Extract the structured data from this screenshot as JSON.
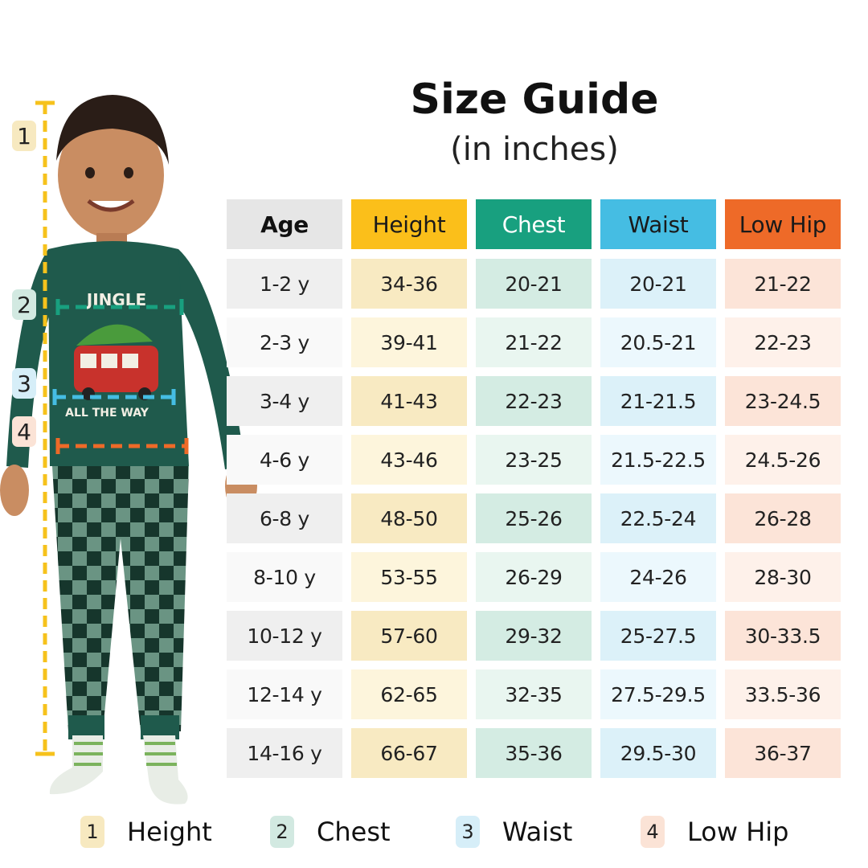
{
  "title": "Size Guide",
  "subtitle": "(in inches)",
  "columns": [
    {
      "key": "age",
      "label": "Age",
      "header_bg": "#e6e6e6",
      "header_fg": "#111111",
      "bold": true,
      "row_bg": [
        "#efefef",
        "#f9f9f9"
      ]
    },
    {
      "key": "height",
      "label": "Height",
      "header_bg": "#fbbf1a",
      "header_fg": "#1a1a1a",
      "bold": false,
      "row_bg": [
        "#f8eac2",
        "#fdf5dc"
      ]
    },
    {
      "key": "chest",
      "label": "Chest",
      "header_bg": "#18a07f",
      "header_fg": "#ffffff",
      "bold": false,
      "row_bg": [
        "#d4ece3",
        "#e9f6f0"
      ]
    },
    {
      "key": "waist",
      "label": "Waist",
      "header_bg": "#45bde3",
      "header_fg": "#1a1a1a",
      "bold": false,
      "row_bg": [
        "#dcf1f9",
        "#ecf8fd"
      ]
    },
    {
      "key": "lowhip",
      "label": "Low Hip",
      "header_bg": "#ee6a28",
      "header_fg": "#1a1a1a",
      "bold": false,
      "row_bg": [
        "#fce4d8",
        "#fef1ea"
      ]
    }
  ],
  "rows": [
    {
      "age": "1-2 y",
      "height": "34-36",
      "chest": "20-21",
      "waist": "20-21",
      "lowhip": "21-22"
    },
    {
      "age": "2-3 y",
      "height": "39-41",
      "chest": "21-22",
      "waist": "20.5-21",
      "lowhip": "22-23"
    },
    {
      "age": "3-4 y",
      "height": "41-43",
      "chest": "22-23",
      "waist": "21-21.5",
      "lowhip": "23-24.5"
    },
    {
      "age": "4-6 y",
      "height": "43-46",
      "chest": "23-25",
      "waist": "21.5-22.5",
      "lowhip": "24.5-26"
    },
    {
      "age": "6-8 y",
      "height": "48-50",
      "chest": "25-26",
      "waist": "22.5-24",
      "lowhip": "26-28"
    },
    {
      "age": "8-10 y",
      "height": "53-55",
      "chest": "26-29",
      "waist": "24-26",
      "lowhip": "28-30"
    },
    {
      "age": "10-12 y",
      "height": "57-60",
      "chest": "29-32",
      "waist": "25-27.5",
      "lowhip": "30-33.5"
    },
    {
      "age": "12-14 y",
      "height": "62-65",
      "chest": "32-35",
      "waist": "27.5-29.5",
      "lowhip": "33.5-36"
    },
    {
      "age": "14-16 y",
      "height": "66-67",
      "chest": "35-36",
      "waist": "29.5-30",
      "lowhip": "36-37"
    }
  ],
  "markers": [
    {
      "num": "1",
      "color": "#f7e9c0"
    },
    {
      "num": "2",
      "color": "#d2e9e1"
    },
    {
      "num": "3",
      "color": "#d6eef8"
    },
    {
      "num": "4",
      "color": "#fbe3d6"
    }
  ],
  "shirt_print": {
    "top": "JINGLE",
    "bottom": "ALL THE WAY"
  },
  "legend": [
    {
      "num": "1",
      "label": "Height",
      "color": "#f7e9c0"
    },
    {
      "num": "2",
      "label": "Chest",
      "color": "#d2e9e1"
    },
    {
      "num": "3",
      "label": "Waist",
      "color": "#d6eef8"
    },
    {
      "num": "4",
      "label": "Low Hip",
      "color": "#fbe3d6"
    }
  ],
  "guide_colors": {
    "height": "#f6c21c",
    "chest": "#18a07f",
    "waist": "#45bde3",
    "lowhip": "#ee6a28"
  }
}
